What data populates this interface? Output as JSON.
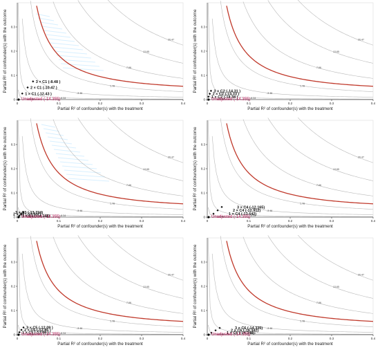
{
  "colors": {
    "contour": "#b8b8b8",
    "threshold": "#c0392b",
    "unadjusted": "#c2185b",
    "benchmark": "#111111",
    "axis": "#333333"
  },
  "layout_grid": {
    "columns": 2,
    "rows": 3
  },
  "charts": [
    {
      "type": "line",
      "xlabel": "Partial R² of confounder(s) with the treatment",
      "ylabel": "Partial R² of confounder(s) with the outcome",
      "xlim": [
        0,
        0.4
      ],
      "ylim": [
        0,
        0.4
      ],
      "x_ticks": [
        "0",
        "0.1",
        "0.2",
        "0.3",
        "0.4"
      ],
      "y_ticks": [
        "0",
        "0.1",
        "0.2",
        "0.3"
      ],
      "contour_labels": [
        "20.47",
        "13.65",
        "7.66",
        "1.78",
        "-3.46",
        "-8.34",
        "-12.90"
      ],
      "threshold_value": 0,
      "unadjusted": {
        "label": "Unadjusted (-14.355)",
        "x": 0,
        "y": 0
      },
      "benchmarks": [
        {
          "label": "1 × C1 (-12.43 )",
          "x": 0.012,
          "y": 0.025
        },
        {
          "label": "2 × C1 (-10.47 )",
          "x": 0.025,
          "y": 0.05
        },
        {
          "label": "3 × C1 (-8.48 )",
          "x": 0.038,
          "y": 0.075
        }
      ],
      "label_offsets": [
        [
          4,
          0
        ],
        [
          4,
          0
        ],
        [
          4,
          0
        ]
      ],
      "annotation_overlay": {
        "kind": "glare",
        "region": "upper-left"
      }
    },
    {
      "type": "line",
      "xlabel": "Partial R² of confounder(s) with the treatment",
      "ylabel": "Partial R² of confounder(s) with the outcome",
      "xlim": [
        0,
        0.4
      ],
      "ylim": [
        0,
        0.4
      ],
      "x_ticks": [
        "0",
        "0.1",
        "0.2",
        "0.3",
        "0.4"
      ],
      "y_ticks": [
        "0",
        "0.1",
        "0.2",
        "0.3"
      ],
      "contour_labels": [
        "20.47",
        "13.65",
        "7.66",
        "1.78",
        "-3.46",
        "-8.34",
        "-12.90"
      ],
      "threshold_value": 0,
      "unadjusted": {
        "label": "Unadjusted (-14.355)",
        "x": 0,
        "y": 0
      },
      "benchmarks": [
        {
          "label": "1 × C2 (-14.34 )",
          "x": 0.003,
          "y": 0.012
        },
        {
          "label": "2 × C2 (-14.33 )",
          "x": 0.006,
          "y": 0.024
        },
        {
          "label": "3 × C2 (-14.31 )",
          "x": 0.009,
          "y": 0.036
        }
      ],
      "label_offsets": [
        [
          4,
          0
        ],
        [
          4,
          0
        ],
        [
          4,
          0
        ]
      ]
    },
    {
      "type": "line",
      "xlabel": "Partial R² of confounder(s) with the treatment",
      "ylabel": "Partial R² of confounder(s) with the outcome",
      "xlim": [
        0,
        0.4
      ],
      "ylim": [
        0,
        0.4
      ],
      "x_ticks": [
        "0",
        "0.1",
        "0.2",
        "0.3",
        "0.4"
      ],
      "y_ticks": [
        "0",
        "0.1",
        "0.2",
        "0.3"
      ],
      "contour_labels": [
        "20.47",
        "13.65",
        "7.66",
        "1.78",
        "-3.46",
        "-8.34",
        "-12.90"
      ],
      "threshold_value": 0,
      "unadjusted": {
        "label": "Unadjusted (-14.355)",
        "x": 0,
        "y": 0
      },
      "benchmarks": [
        {
          "label": "1 × C3 (-14.148)",
          "x": 0.005,
          "y": 0.006
        },
        {
          "label": "2 × C3 (-13.937)",
          "x": 0.01,
          "y": 0.013
        },
        {
          "label": "3 × C3 (-13.724)",
          "x": 0.015,
          "y": 0.02
        }
      ],
      "label_offsets": [
        [
          4,
          0
        ],
        [
          -12,
          0
        ],
        [
          -12,
          0
        ]
      ],
      "annotation_overlay": {
        "kind": "glare",
        "region": "upper-middle"
      }
    },
    {
      "type": "line",
      "xlabel": "Partial R² of confounder(s) with the treatment",
      "ylabel": "Partial R² of confounder(s) with the outcome",
      "xlim": [
        0,
        0.4
      ],
      "ylim": [
        0,
        0.4
      ],
      "x_ticks": [
        "0",
        "0.1",
        "0.2",
        "0.3",
        "0.4"
      ],
      "y_ticks": [
        "0",
        "0.1",
        "0.2",
        "0.3"
      ],
      "contour_labels": [
        "20.47",
        "13.65",
        "7.66",
        "1.78",
        "-3.46",
        "-8.34",
        "-12.90"
      ],
      "threshold_value": 0,
      "unadjusted": {
        "label": "Unadjusted (-14.355)",
        "x": 0,
        "y": 0
      },
      "benchmarks": [
        {
          "label": "1 × C4 (-13.642)",
          "x": 0.015,
          "y": 0.014
        },
        {
          "label": "2 × C4 (-12.912)",
          "x": 0.025,
          "y": 0.028
        },
        {
          "label": "3 × C4 (-12.165)",
          "x": 0.035,
          "y": 0.042
        }
      ],
      "label_offsets": [
        [
          22,
          0
        ],
        [
          22,
          0
        ],
        [
          22,
          0
        ]
      ]
    },
    {
      "type": "line",
      "xlabel": "Partial R² of confounder(s) with the treatment",
      "ylabel": "Partial R² of confounder(s) with the outcome",
      "xlim": [
        0,
        0.4
      ],
      "ylim": [
        0,
        0.4
      ],
      "x_ticks": [
        "0",
        "0.1",
        "0.2",
        "0.3",
        "0.4"
      ],
      "y_ticks": [
        "0",
        "0.1",
        "0.2",
        "0.3"
      ],
      "contour_labels": [
        "20.47",
        "13.65",
        "7.66",
        "1.78",
        "-3.46",
        "-8.34",
        "-12.90"
      ],
      "threshold_value": 0,
      "unadjusted": {
        "label": "Unadjusted (-14.355)",
        "x": 0,
        "y": 0
      },
      "benchmarks": [
        {
          "label": "1 × C5 (-13.66 )",
          "x": 0.005,
          "y": 0.01
        },
        {
          "label": "2 × C5 (-12.85 )",
          "x": 0.01,
          "y": 0.02
        },
        {
          "label": "3 × C5 (-12.09 )",
          "x": 0.015,
          "y": 0.03
        }
      ],
      "label_offsets": [
        [
          4,
          0
        ],
        [
          4,
          0
        ],
        [
          4,
          0
        ]
      ]
    },
    {
      "type": "line",
      "xlabel": "Partial R² of confounder(s) with the treatment",
      "ylabel": "Partial R² of confounder(s) with the outcome",
      "xlim": [
        0,
        0.4
      ],
      "ylim": [
        0,
        0.4
      ],
      "x_ticks": [
        "0",
        "0.1",
        "0.2",
        "0.3",
        "0.4"
      ],
      "y_ticks": [
        "0",
        "0.1",
        "0.2",
        "0.3"
      ],
      "contour_labels": [
        "20.47",
        "13.65",
        "7.66",
        "1.78",
        "-3.46",
        "-8.34",
        "-12.90"
      ],
      "threshold_value": 0,
      "unadjusted": {
        "label": "Unadjusted (-14.355)",
        "x": 0,
        "y": 0
      },
      "benchmarks": [
        {
          "label": "1 × C6 (-14.348)",
          "x": 0.01,
          "y": 0.008
        },
        {
          "label": "2 × C6 (-14.342)",
          "x": 0.02,
          "y": 0.018
        },
        {
          "label": "3 × C6 (-14.335)",
          "x": 0.03,
          "y": 0.028
        }
      ],
      "label_offsets": [
        [
          22,
          0
        ],
        [
          22,
          0
        ],
        [
          22,
          0
        ]
      ]
    }
  ]
}
